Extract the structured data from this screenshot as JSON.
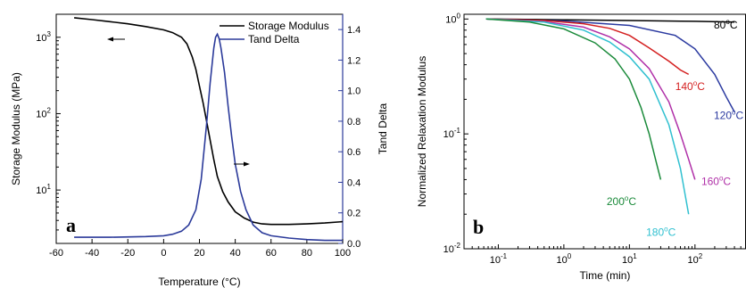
{
  "chart_data": [
    {
      "panel_label": "a",
      "type": "line",
      "xlabel": "Temperature (°C)",
      "ylabel_left": "Storage Modulus (MPa)",
      "ylabel_right": "Tand Delta",
      "xlim": [
        -60,
        100
      ],
      "xticks": [
        -60,
        -40,
        -20,
        0,
        20,
        40,
        60,
        80,
        100
      ],
      "ylim_left": [
        2,
        2000
      ],
      "yscale_left": "log",
      "yticks_left": [
        {
          "value": 1000,
          "base": "10",
          "exp": "3"
        },
        {
          "value": 100,
          "base": "10",
          "exp": "2"
        },
        {
          "value": 10,
          "base": "10",
          "exp": "1"
        }
      ],
      "ylim_right": [
        0,
        1.5
      ],
      "yticks_right": [
        "0.0",
        "0.2",
        "0.4",
        "0.6",
        "0.8",
        "1.0",
        "1.2",
        "1.4"
      ],
      "legend_position": "top-right",
      "series": [
        {
          "name": "Storage Modulus",
          "axis": "left",
          "color": "#000000",
          "x": [
            -50,
            -40,
            -30,
            -20,
            -10,
            0,
            5,
            10,
            13,
            16,
            18,
            20,
            22,
            24,
            26,
            28,
            30,
            33,
            36,
            40,
            45,
            50,
            55,
            60,
            70,
            80,
            90,
            100
          ],
          "y": [
            1800,
            1700,
            1600,
            1500,
            1380,
            1250,
            1150,
            1000,
            820,
            550,
            380,
            230,
            140,
            80,
            45,
            25,
            15,
            9.5,
            7,
            5.2,
            4.3,
            3.8,
            3.6,
            3.55,
            3.55,
            3.6,
            3.7,
            3.85
          ]
        },
        {
          "name": "Tand Delta",
          "axis": "right",
          "color": "#2b3a9a",
          "x": [
            -50,
            -30,
            -10,
            0,
            5,
            10,
            14,
            18,
            21,
            24,
            26,
            28,
            29,
            30,
            31,
            32,
            34,
            36,
            38,
            40,
            43,
            46,
            50,
            55,
            60,
            70,
            80,
            90,
            100
          ],
          "y": [
            0.04,
            0.04,
            0.045,
            0.05,
            0.06,
            0.08,
            0.12,
            0.22,
            0.42,
            0.78,
            1.05,
            1.28,
            1.35,
            1.37,
            1.34,
            1.28,
            1.12,
            0.9,
            0.7,
            0.52,
            0.34,
            0.22,
            0.12,
            0.07,
            0.05,
            0.035,
            0.025,
            0.02,
            0.02
          ]
        }
      ]
    },
    {
      "panel_label": "b",
      "type": "line",
      "xlabel": "Time (min)",
      "ylabel": "Normalized Relaxation Modulus",
      "xscale": "log",
      "yscale": "log",
      "xlim": [
        0.03,
        600
      ],
      "ylim": [
        0.01,
        1.1
      ],
      "xticks": [
        {
          "value": 0.1,
          "base": "10",
          "exp": "-1"
        },
        {
          "value": 1,
          "base": "10",
          "exp": "0"
        },
        {
          "value": 10,
          "base": "10",
          "exp": "1"
        },
        {
          "value": 100,
          "base": "10",
          "exp": "2"
        }
      ],
      "yticks": [
        {
          "value": 1,
          "base": "10",
          "exp": "0"
        },
        {
          "value": 0.1,
          "base": "10",
          "exp": "-1"
        },
        {
          "value": 0.01,
          "base": "10",
          "exp": "-2"
        }
      ],
      "series": [
        {
          "name": "80°C",
          "color": "#000000",
          "label_at": [
            360,
            0.83
          ],
          "x": [
            0.065,
            1,
            10,
            100,
            400
          ],
          "y": [
            1.0,
            0.985,
            0.97,
            0.955,
            0.94
          ]
        },
        {
          "name": "120°C",
          "color": "#2b3aa0",
          "label_at": [
            300,
            0.135
          ],
          "x": [
            0.065,
            1,
            10,
            50,
            100,
            200,
            300,
            400
          ],
          "y": [
            1.0,
            0.96,
            0.88,
            0.72,
            0.55,
            0.33,
            0.21,
            0.155
          ]
        },
        {
          "name": "140°C",
          "color": "#d42020",
          "label_at": [
            50,
            0.24
          ],
          "x": [
            0.065,
            0.5,
            2,
            5,
            10,
            20,
            40,
            60,
            80
          ],
          "y": [
            1.0,
            0.97,
            0.91,
            0.83,
            0.72,
            0.56,
            0.43,
            0.36,
            0.33
          ]
        },
        {
          "name": "160°C",
          "color": "#b030a8",
          "label_at": [
            125,
            0.036
          ],
          "x": [
            0.065,
            0.5,
            2,
            5,
            10,
            20,
            40,
            60,
            80,
            100
          ],
          "y": [
            1.0,
            0.95,
            0.85,
            0.7,
            0.55,
            0.37,
            0.19,
            0.1,
            0.06,
            0.04
          ]
        },
        {
          "name": "180°C",
          "color": "#30c0d0",
          "label_at": [
            18,
            0.013
          ],
          "x": [
            0.065,
            0.5,
            2,
            5,
            10,
            20,
            40,
            60,
            80
          ],
          "y": [
            1.0,
            0.94,
            0.8,
            0.63,
            0.47,
            0.3,
            0.12,
            0.05,
            0.02
          ]
        },
        {
          "name": "200°C",
          "color": "#1a8a3a",
          "label_at": [
            4.5,
            0.024
          ],
          "x": [
            0.065,
            0.3,
            1,
            3,
            6,
            10,
            15,
            20,
            25,
            30
          ],
          "y": [
            1.0,
            0.94,
            0.82,
            0.62,
            0.45,
            0.3,
            0.17,
            0.1,
            0.06,
            0.04
          ]
        }
      ]
    }
  ]
}
